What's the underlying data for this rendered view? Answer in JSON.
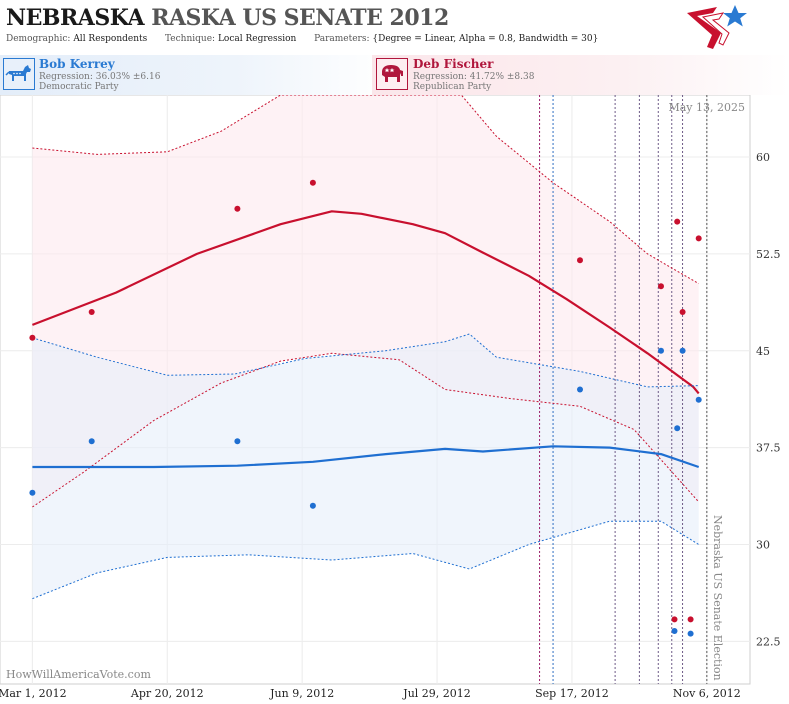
{
  "header": {
    "title_part1": "NEBRASKA",
    "title_part2": "RASKA US SENATE 2012",
    "demographic_label": "Demographic:",
    "demographic_value": "All Respondents",
    "technique_label": "Technique:",
    "technique_value": "Local Regression",
    "parameters_label": "Parameters:",
    "parameters_value": "{Degree = Linear, Alpha = 0.8, Bandwidth = 30}"
  },
  "candidates": [
    {
      "name": "Bob Kerrey",
      "regression": "Regression: 36.03% ±6.16",
      "party": "Democratic Party",
      "color": "#2a7ad2"
    },
    {
      "name": "Deb Fischer",
      "regression": "Regression: 41.72% ±8.38",
      "party": "Republican Party",
      "color": "#b0163c"
    }
  ],
  "chart_data": {
    "type": "scatter",
    "x_start": "2012-02-18",
    "x_end": "2012-11-22",
    "ylim": [
      19.2,
      64.8
    ],
    "yticks": [
      22.5,
      30,
      37.5,
      45,
      52.5,
      60
    ],
    "ytick_labels": [
      "22.5",
      "30",
      "37.5",
      "45",
      "52.5",
      "60"
    ],
    "xticks": [
      "2012-03-01",
      "2012-04-20",
      "2012-06-09",
      "2012-07-29",
      "2012-09-17",
      "2012-11-06"
    ],
    "xtick_labels": [
      "Mar 1, 2012",
      "Apr 20, 2012",
      "Jun 9, 2012",
      "Jul 29, 2012",
      "Sep 17, 2012",
      "Nov 6, 2012"
    ],
    "date_label": "May 13, 2025",
    "election_label": "Nebraska US Senate Election",
    "watermark": "HowWillAmericaVote.com",
    "vlines": [
      {
        "x": "2012-09-05",
        "color": "#9c1f6a"
      },
      {
        "x": "2012-09-10",
        "color": "#2f6fc2"
      },
      {
        "x": "2012-10-03",
        "color": "#6d5a86"
      },
      {
        "x": "2012-10-12",
        "color": "#6d5a86"
      },
      {
        "x": "2012-10-19",
        "color": "#6d5a86"
      },
      {
        "x": "2012-10-24",
        "color": "#6d5a86"
      },
      {
        "x": "2012-10-28",
        "color": "#6d5a86"
      },
      {
        "x": "2012-11-06",
        "color": "#555555"
      }
    ],
    "series": [
      {
        "name": "Deb Fischer",
        "color": "#c8102e",
        "points": [
          [
            "2012-03-01",
            46.0
          ],
          [
            "2012-03-23",
            48.0
          ],
          [
            "2012-05-16",
            56.0
          ],
          [
            "2012-06-13",
            58.0
          ],
          [
            "2012-09-20",
            52.0
          ],
          [
            "2012-10-20",
            50.0
          ],
          [
            "2012-10-26",
            55.0
          ],
          [
            "2012-10-28",
            48.0
          ],
          [
            "2012-11-03",
            53.7
          ],
          [
            "2012-10-25",
            24.2
          ],
          [
            "2012-10-31",
            24.2
          ]
        ],
        "trend": [
          [
            "2012-03-01",
            47.0
          ],
          [
            "2012-04-01",
            49.5
          ],
          [
            "2012-05-01",
            52.5
          ],
          [
            "2012-06-01",
            54.8
          ],
          [
            "2012-06-20",
            55.8
          ],
          [
            "2012-07-01",
            55.6
          ],
          [
            "2012-07-20",
            54.8
          ],
          [
            "2012-08-01",
            54.1
          ],
          [
            "2012-08-15",
            52.6
          ],
          [
            "2012-09-01",
            50.8
          ],
          [
            "2012-09-15",
            49.0
          ],
          [
            "2012-10-01",
            46.8
          ],
          [
            "2012-10-15",
            44.8
          ],
          [
            "2012-11-01",
            42.2
          ],
          [
            "2012-11-03",
            41.7
          ]
        ],
        "upper": [
          [
            "2012-03-01",
            60.7
          ],
          [
            "2012-03-25",
            60.2
          ],
          [
            "2012-04-20",
            60.4
          ],
          [
            "2012-05-10",
            62.0
          ],
          [
            "2012-06-01",
            64.8
          ],
          [
            "2012-08-07",
            64.8
          ],
          [
            "2012-08-20",
            61.6
          ],
          [
            "2012-09-10",
            58.0
          ],
          [
            "2012-10-01",
            55.0
          ],
          [
            "2012-10-15",
            52.5
          ],
          [
            "2012-11-03",
            50.2
          ]
        ],
        "lower": [
          [
            "2012-03-01",
            32.9
          ],
          [
            "2012-03-20",
            35.6
          ],
          [
            "2012-04-15",
            39.6
          ],
          [
            "2012-05-10",
            42.5
          ],
          [
            "2012-06-01",
            44.2
          ],
          [
            "2012-06-20",
            44.8
          ],
          [
            "2012-07-15",
            44.3
          ],
          [
            "2012-08-01",
            42.0
          ],
          [
            "2012-08-25",
            41.3
          ],
          [
            "2012-09-20",
            40.7
          ],
          [
            "2012-10-10",
            38.9
          ],
          [
            "2012-11-03",
            33.3
          ]
        ]
      },
      {
        "name": "Bob Kerrey",
        "color": "#1f6fd1",
        "points": [
          [
            "2012-03-01",
            34.0
          ],
          [
            "2012-03-23",
            38.0
          ],
          [
            "2012-05-16",
            38.0
          ],
          [
            "2012-06-13",
            33.0
          ],
          [
            "2012-09-20",
            42.0
          ],
          [
            "2012-10-20",
            45.0
          ],
          [
            "2012-10-26",
            39.0
          ],
          [
            "2012-10-28",
            45.0
          ],
          [
            "2012-11-03",
            41.2
          ],
          [
            "2012-10-25",
            23.3
          ],
          [
            "2012-10-31",
            23.1
          ]
        ],
        "trend": [
          [
            "2012-03-01",
            36.0
          ],
          [
            "2012-04-15",
            36.0
          ],
          [
            "2012-05-16",
            36.1
          ],
          [
            "2012-06-13",
            36.4
          ],
          [
            "2012-07-10",
            37.0
          ],
          [
            "2012-08-01",
            37.4
          ],
          [
            "2012-08-15",
            37.2
          ],
          [
            "2012-09-10",
            37.6
          ],
          [
            "2012-10-01",
            37.5
          ],
          [
            "2012-10-20",
            37.0
          ],
          [
            "2012-11-03",
            36.0
          ]
        ],
        "upper": [
          [
            "2012-03-01",
            46.0
          ],
          [
            "2012-03-25",
            44.5
          ],
          [
            "2012-04-20",
            43.1
          ],
          [
            "2012-05-15",
            43.2
          ],
          [
            "2012-06-10",
            44.4
          ],
          [
            "2012-07-10",
            45.0
          ],
          [
            "2012-08-01",
            45.7
          ],
          [
            "2012-08-10",
            46.3
          ],
          [
            "2012-08-20",
            44.5
          ],
          [
            "2012-09-20",
            43.4
          ],
          [
            "2012-10-15",
            42.2
          ],
          [
            "2012-11-03",
            42.3
          ]
        ],
        "lower": [
          [
            "2012-03-01",
            25.8
          ],
          [
            "2012-03-25",
            27.8
          ],
          [
            "2012-04-20",
            29.0
          ],
          [
            "2012-05-20",
            29.2
          ],
          [
            "2012-06-20",
            28.8
          ],
          [
            "2012-07-20",
            29.3
          ],
          [
            "2012-08-10",
            28.1
          ],
          [
            "2012-09-01",
            30.0
          ],
          [
            "2012-10-01",
            31.8
          ],
          [
            "2012-10-20",
            31.8
          ],
          [
            "2012-11-03",
            30.0
          ]
        ]
      }
    ]
  }
}
